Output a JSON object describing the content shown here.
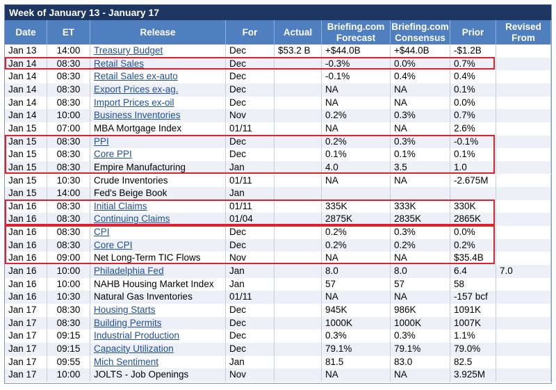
{
  "header": {
    "title": "Week of January 13 - January 17"
  },
  "table": {
    "columns": [
      {
        "key": "date",
        "label": "Date"
      },
      {
        "key": "et",
        "label": "ET"
      },
      {
        "key": "release",
        "label": "Release"
      },
      {
        "key": "for",
        "label": "For"
      },
      {
        "key": "actual",
        "label": "Actual"
      },
      {
        "key": "forecast",
        "label": "Briefing.com Forecast"
      },
      {
        "key": "consensus",
        "label": "Briefing.com Consensus"
      },
      {
        "key": "prior",
        "label": "Prior"
      },
      {
        "key": "revised",
        "label": "Revised From"
      }
    ],
    "rows": [
      {
        "date": "Jan 13",
        "et": "14:00",
        "release": "Treasury Budget",
        "link": true,
        "for": "Dec",
        "actual": "$53.2 B",
        "forecast": "+$44.0B",
        "consensus": "+$44.0B",
        "prior": "-$1.2B"
      },
      {
        "date": "Jan 14",
        "et": "08:30",
        "release": "Retail Sales",
        "link": true,
        "for": "Dec",
        "forecast": "-0.3%",
        "consensus": "0.0%",
        "prior": "0.7%"
      },
      {
        "date": "Jan 14",
        "et": "08:30",
        "release": "Retail Sales ex-auto",
        "link": true,
        "for": "Dec",
        "forecast": "-0.1%",
        "consensus": "0.4%",
        "prior": "0.4%"
      },
      {
        "date": "Jan 14",
        "et": "08:30",
        "release": "Export Prices ex-ag.",
        "link": true,
        "for": "Dec",
        "forecast": "NA",
        "consensus": "NA",
        "prior": "0.1%"
      },
      {
        "date": "Jan 14",
        "et": "08:30",
        "release": "Import Prices ex-oil",
        "link": true,
        "for": "Dec",
        "forecast": "NA",
        "consensus": "NA",
        "prior": "0.0%"
      },
      {
        "date": "Jan 14",
        "et": "10:00",
        "release": "Business Inventories",
        "link": true,
        "for": "Nov",
        "forecast": "0.2%",
        "consensus": "0.3%",
        "prior": "0.7%"
      },
      {
        "date": "Jan 15",
        "et": "07:00",
        "release": "MBA Mortgage Index",
        "for": "01/11",
        "forecast": "NA",
        "consensus": "NA",
        "prior": "2.6%"
      },
      {
        "date": "Jan 15",
        "et": "08:30",
        "release": "PPI",
        "link": true,
        "for": "Dec",
        "forecast": "0.2%",
        "consensus": "0.3%",
        "prior": "-0.1%"
      },
      {
        "date": "Jan 15",
        "et": "08:30",
        "release": "Core PPI",
        "link": true,
        "for": "Dec",
        "forecast": "0.1%",
        "consensus": "0.1%",
        "prior": "0.1%"
      },
      {
        "date": "Jan 15",
        "et": "08:30",
        "release": "Empire Manufacturing",
        "for": "Jan",
        "forecast": "4.0",
        "consensus": "3.5",
        "prior": "1.0"
      },
      {
        "date": "Jan 15",
        "et": "10:30",
        "release": "Crude Inventories",
        "for": "01/11",
        "forecast": "NA",
        "consensus": "NA",
        "prior": "-2.675M"
      },
      {
        "date": "Jan 15",
        "et": "14:00",
        "release": "Fed's Beige Book",
        "for": "Jan"
      },
      {
        "date": "Jan 16",
        "et": "08:30",
        "release": "Initial Claims",
        "link": true,
        "for": "01/11",
        "forecast": "335K",
        "consensus": "333K",
        "prior": "330K"
      },
      {
        "date": "Jan 16",
        "et": "08:30",
        "release": "Continuing Claims",
        "link": true,
        "for": "01/04",
        "forecast": "2875K",
        "consensus": "2835K",
        "prior": "2865K"
      },
      {
        "date": "Jan 16",
        "et": "08:30",
        "release": "CPI",
        "link": true,
        "for": "Dec",
        "forecast": "0.2%",
        "consensus": "0.3%",
        "prior": "0.0%"
      },
      {
        "date": "Jan 16",
        "et": "08:30",
        "release": "Core CPI",
        "link": true,
        "for": "Dec",
        "forecast": "0.2%",
        "consensus": "0.2%",
        "prior": "0.2%"
      },
      {
        "date": "Jan 16",
        "et": "09:00",
        "release": "Net Long-Term TIC Flows",
        "for": "Nov",
        "forecast": "NA",
        "consensus": "NA",
        "prior": "$35.4B"
      },
      {
        "date": "Jan 16",
        "et": "10:00",
        "release": "Philadelphia Fed",
        "link": true,
        "for": "Jan",
        "forecast": "8.0",
        "consensus": "8.0",
        "prior": "6.4",
        "revised": "7.0"
      },
      {
        "date": "Jan 16",
        "et": "10:00",
        "release": "NAHB Housing Market Index",
        "for": "Jan",
        "forecast": "57",
        "consensus": "57",
        "prior": "58"
      },
      {
        "date": "Jan 16",
        "et": "10:30",
        "release": "Natural Gas Inventories",
        "for": "01/11",
        "forecast": "NA",
        "consensus": "NA",
        "prior": "-157 bcf"
      },
      {
        "date": "Jan 17",
        "et": "08:30",
        "release": "Housing Starts",
        "link": true,
        "for": "Dec",
        "forecast": "945K",
        "consensus": "986K",
        "prior": "1091K"
      },
      {
        "date": "Jan 17",
        "et": "08:30",
        "release": "Building Permits",
        "link": true,
        "for": "Dec",
        "forecast": "1000K",
        "consensus": "1000K",
        "prior": "1007K"
      },
      {
        "date": "Jan 17",
        "et": "09:15",
        "release": "Industrial Production",
        "link": true,
        "for": "Dec",
        "forecast": "0.3%",
        "consensus": "0.3%",
        "prior": "1.1%"
      },
      {
        "date": "Jan 17",
        "et": "09:15",
        "release": "Capacity Utilization",
        "link": true,
        "for": "Dec",
        "forecast": "79.1%",
        "consensus": "79.1%",
        "prior": "79.0%"
      },
      {
        "date": "Jan 17",
        "et": "09:55",
        "release": "Mich Sentiment",
        "link": true,
        "for": "Jan",
        "forecast": "81.5",
        "consensus": "83.0",
        "prior": "82.5"
      },
      {
        "date": "Jan 17",
        "et": "10:00",
        "release": "JOLTS - Job Openings",
        "for": "Nov",
        "forecast": "NA",
        "consensus": "NA",
        "prior": "3.925M"
      }
    ]
  }
}
